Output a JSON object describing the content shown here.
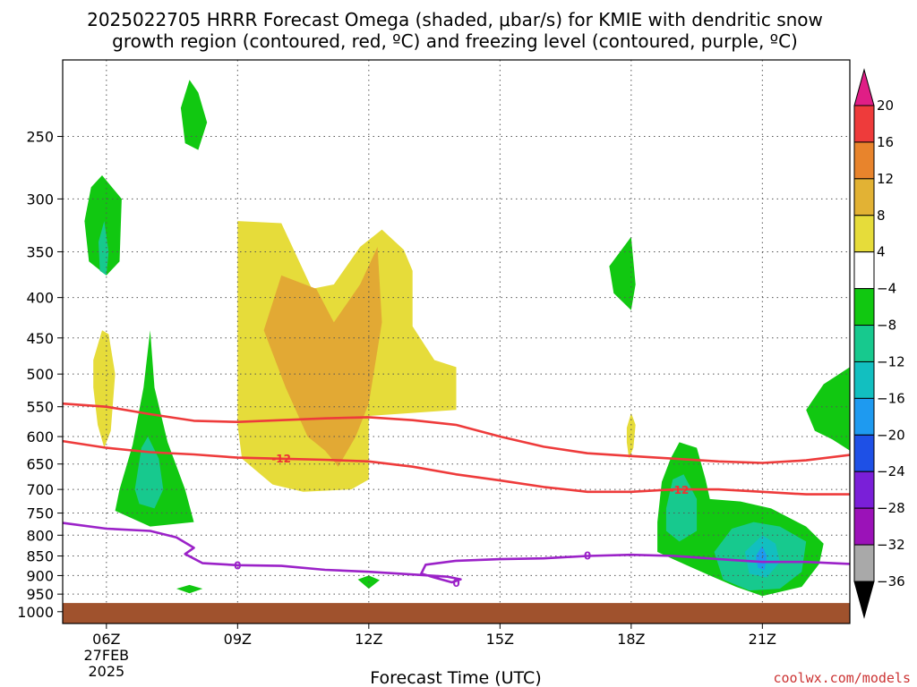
{
  "title_line1": "2025022705 HRRR Forecast Omega (shaded, μbar/s) for KMIE with dendritic snow",
  "title_line2": "growth region (contoured, red, ºC) and freezing level (contoured, purple, ºC)",
  "credit": "coolwx.com/models",
  "chart_data": {
    "type": "heatmap",
    "title": "2025022705 HRRR Forecast Omega (shaded, μbar/s) for KMIE with dendritic snow growth region (contoured, red, ºC) and freezing level (contoured, purple, ºC)",
    "xlabel": "Forecast Time (UTC)",
    "ylabel": "",
    "x_range_hours": [
      5,
      23
    ],
    "y_range_hPa": [
      200,
      1035
    ],
    "grid": true,
    "x_ticks": [
      {
        "hour": 6,
        "label": "06Z",
        "sub1": "27FEB",
        "sub2": "2025"
      },
      {
        "hour": 9,
        "label": "09Z"
      },
      {
        "hour": 12,
        "label": "12Z"
      },
      {
        "hour": 15,
        "label": "15Z"
      },
      {
        "hour": 18,
        "label": "18Z"
      },
      {
        "hour": 21,
        "label": "21Z"
      }
    ],
    "y_ticks": [
      "250",
      "300",
      "350",
      "400",
      "450",
      "500",
      "550",
      "600",
      "650",
      "700",
      "750",
      "800",
      "850",
      "900",
      "950",
      "1000"
    ],
    "colorbar": {
      "placement": "right",
      "labels": [
        "20",
        "16",
        "12",
        "8",
        "4",
        "−4",
        "−8",
        "−12",
        "−16",
        "−20",
        "−24",
        "−28",
        "−32",
        "−36"
      ],
      "colors": [
        "#e01e86",
        "#ee3b3b",
        "#e8842c",
        "#e2b234",
        "#e6dc3a",
        "#ffffff",
        "#11c811",
        "#17c98e",
        "#12bfc0",
        "#1e9af0",
        "#1e50e6",
        "#7a1fd8",
        "#9b12b8",
        "#a9a9a9",
        "#000000"
      ]
    },
    "shaded_regions": [
      {
        "name": "yellow-upper",
        "level": "4 to 8",
        "color": "#e6dc3a",
        "points": [
          [
            9.0,
            320
          ],
          [
            10.0,
            322
          ],
          [
            10.7,
            390
          ],
          [
            11.2,
            385
          ],
          [
            11.8,
            345
          ],
          [
            12.3,
            328
          ],
          [
            12.8,
            348
          ],
          [
            13.0,
            370
          ],
          [
            13.0,
            435
          ],
          [
            13.5,
            480
          ],
          [
            14.0,
            490
          ],
          [
            14.0,
            555
          ],
          [
            13.0,
            560
          ],
          [
            12.0,
            565
          ],
          [
            12.0,
            680
          ],
          [
            11.6,
            700
          ],
          [
            10.5,
            705
          ],
          [
            9.8,
            690
          ],
          [
            9.1,
            640
          ],
          [
            9.0,
            580
          ]
        ]
      },
      {
        "name": "yellow-left",
        "level": "4 to 8",
        "color": "#e6dc3a",
        "points": [
          [
            5.7,
            480
          ],
          [
            5.9,
            440
          ],
          [
            6.05,
            445
          ],
          [
            6.2,
            500
          ],
          [
            6.1,
            590
          ],
          [
            5.95,
            620
          ],
          [
            5.8,
            580
          ],
          [
            5.7,
            520
          ]
        ]
      },
      {
        "name": "yellow-18z",
        "level": "4 to 8",
        "color": "#e6dc3a",
        "points": [
          [
            17.9,
            585
          ],
          [
            18.0,
            560
          ],
          [
            18.1,
            580
          ],
          [
            18.05,
            620
          ],
          [
            17.95,
            640
          ],
          [
            17.9,
            610
          ]
        ]
      },
      {
        "name": "orange-core",
        "level": "8 to 12",
        "color": "#e2a934",
        "points": [
          [
            10.0,
            375
          ],
          [
            10.8,
            390
          ],
          [
            11.2,
            430
          ],
          [
            11.8,
            385
          ],
          [
            12.2,
            345
          ],
          [
            12.3,
            430
          ],
          [
            12.0,
            545
          ],
          [
            11.7,
            600
          ],
          [
            11.3,
            655
          ],
          [
            11.0,
            625
          ],
          [
            10.6,
            600
          ],
          [
            10.1,
            520
          ],
          [
            9.6,
            440
          ]
        ]
      },
      {
        "name": "green-0606",
        "level": "-8 to -4",
        "color": "#11c811",
        "points": [
          [
            5.5,
            320
          ],
          [
            5.65,
            290
          ],
          [
            5.9,
            280
          ],
          [
            6.35,
            300
          ],
          [
            6.3,
            360
          ],
          [
            6.0,
            375
          ],
          [
            5.6,
            360
          ]
        ]
      },
      {
        "name": "teal-0606",
        "level": "-12 to -8",
        "color": "#17c98e",
        "points": [
          [
            5.82,
            340
          ],
          [
            5.95,
            320
          ],
          [
            6.05,
            350
          ],
          [
            6.0,
            375
          ],
          [
            5.85,
            370
          ]
        ]
      },
      {
        "name": "green-top",
        "level": "-8 to -4",
        "color": "#11c811",
        "points": [
          [
            7.7,
            230
          ],
          [
            7.9,
            212
          ],
          [
            8.1,
            220
          ],
          [
            8.3,
            240
          ],
          [
            8.1,
            260
          ],
          [
            7.8,
            255
          ]
        ]
      },
      {
        "name": "green-0700",
        "level": "-8 to -4",
        "color": "#11c811",
        "points": [
          [
            7.0,
            440
          ],
          [
            7.1,
            520
          ],
          [
            7.4,
            610
          ],
          [
            7.8,
            700
          ],
          [
            8.0,
            770
          ],
          [
            7.0,
            780
          ],
          [
            6.2,
            745
          ],
          [
            6.3,
            700
          ],
          [
            6.6,
            615
          ],
          [
            6.85,
            520
          ]
        ]
      },
      {
        "name": "teal-0700",
        "level": "-12 to -8",
        "color": "#17c98e",
        "points": [
          [
            6.8,
            620
          ],
          [
            6.95,
            600
          ],
          [
            7.2,
            640
          ],
          [
            7.3,
            700
          ],
          [
            7.1,
            740
          ],
          [
            6.75,
            730
          ],
          [
            6.65,
            700
          ]
        ]
      },
      {
        "name": "green-blob-lower",
        "level": "-8 to -4",
        "color": "#11c811",
        "points": [
          [
            7.6,
            935
          ],
          [
            7.9,
            925
          ],
          [
            8.2,
            935
          ],
          [
            7.9,
            948
          ]
        ]
      },
      {
        "name": "green-blob-12z",
        "level": "-8 to -4",
        "color": "#11c811",
        "points": [
          [
            11.75,
            910
          ],
          [
            12.0,
            900
          ],
          [
            12.25,
            912
          ],
          [
            12.0,
            935
          ]
        ]
      },
      {
        "name": "green-1800",
        "level": "-8 to -4",
        "color": "#11c811",
        "points": [
          [
            17.5,
            365
          ],
          [
            18.0,
            335
          ],
          [
            18.1,
            385
          ],
          [
            18.0,
            415
          ],
          [
            17.6,
            395
          ]
        ]
      },
      {
        "name": "green-1900-21z",
        "level": "-8 to -4",
        "color": "#11c811",
        "points": [
          [
            18.7,
            685
          ],
          [
            18.9,
            640
          ],
          [
            19.1,
            610
          ],
          [
            19.5,
            620
          ],
          [
            19.7,
            680
          ],
          [
            19.8,
            720
          ],
          [
            20.5,
            725
          ],
          [
            21.2,
            740
          ],
          [
            22.0,
            780
          ],
          [
            22.4,
            820
          ],
          [
            22.3,
            870
          ],
          [
            21.9,
            930
          ],
          [
            21.0,
            955
          ],
          [
            20.4,
            930
          ],
          [
            19.8,
            900
          ],
          [
            19.0,
            860
          ],
          [
            18.6,
            840
          ],
          [
            18.6,
            770
          ]
        ]
      },
      {
        "name": "teal-1900",
        "level": "-12 to -8",
        "color": "#17c98e",
        "points": [
          [
            18.8,
            740
          ],
          [
            18.95,
            680
          ],
          [
            19.2,
            670
          ],
          [
            19.5,
            720
          ],
          [
            19.5,
            790
          ],
          [
            19.1,
            815
          ],
          [
            18.8,
            790
          ]
        ]
      },
      {
        "name": "teal-21z",
        "level": "-12 to -8",
        "color": "#17c98e",
        "points": [
          [
            19.9,
            840
          ],
          [
            20.3,
            785
          ],
          [
            20.8,
            770
          ],
          [
            21.4,
            780
          ],
          [
            22.0,
            815
          ],
          [
            21.9,
            890
          ],
          [
            21.4,
            935
          ],
          [
            20.7,
            940
          ],
          [
            20.1,
            910
          ]
        ]
      },
      {
        "name": "cyan-21z",
        "level": "-16 to -12",
        "color": "#12bfc0",
        "points": [
          [
            20.6,
            840
          ],
          [
            21.0,
            800
          ],
          [
            21.3,
            820
          ],
          [
            21.4,
            865
          ],
          [
            21.1,
            905
          ],
          [
            20.7,
            895
          ]
        ]
      },
      {
        "name": "blue-21z",
        "level": "-20 to -16",
        "color": "#1e9af0",
        "points": [
          [
            20.85,
            850
          ],
          [
            21.0,
            825
          ],
          [
            21.1,
            850
          ],
          [
            21.05,
            885
          ],
          [
            20.9,
            880
          ]
        ]
      },
      {
        "name": "green-right",
        "level": "-8 to -4",
        "color": "#11c811",
        "points": [
          [
            22.0,
            555
          ],
          [
            22.4,
            515
          ],
          [
            23.0,
            490
          ],
          [
            23.0,
            625
          ],
          [
            22.6,
            605
          ],
          [
            22.2,
            590
          ]
        ]
      }
    ],
    "contours": [
      {
        "name": "dgz-upper",
        "level": "",
        "color": "#ee3b3b",
        "points": [
          [
            5,
            545
          ],
          [
            6,
            550
          ],
          [
            7,
            562
          ],
          [
            8,
            573
          ],
          [
            9,
            575
          ],
          [
            10,
            572
          ],
          [
            11,
            569
          ],
          [
            12,
            567
          ],
          [
            13,
            572
          ],
          [
            14,
            580
          ],
          [
            15,
            600
          ],
          [
            16,
            618
          ],
          [
            17,
            630
          ],
          [
            18,
            635
          ],
          [
            19,
            640
          ],
          [
            20,
            645
          ],
          [
            21,
            648
          ],
          [
            22,
            643
          ],
          [
            23,
            633
          ]
        ]
      },
      {
        "name": "dgz-lower",
        "level": "-12",
        "color": "#ee3b3b",
        "label_at": [
          10.0,
          640
        ],
        "points": [
          [
            5,
            608
          ],
          [
            6,
            620
          ],
          [
            7,
            628
          ],
          [
            8,
            632
          ],
          [
            9,
            638
          ],
          [
            10,
            640
          ],
          [
            11,
            642
          ],
          [
            12,
            645
          ],
          [
            13,
            655
          ],
          [
            14,
            670
          ],
          [
            15,
            682
          ],
          [
            16,
            695
          ],
          [
            17,
            705
          ],
          [
            18,
            705
          ],
          [
            19,
            700
          ],
          [
            20,
            700
          ],
          [
            21,
            705
          ],
          [
            22,
            710
          ],
          [
            23,
            710
          ]
        ]
      },
      {
        "name": "dgz-lower-label2",
        "level": "-12",
        "color": "#ee3b3b",
        "label_at": [
          19.1,
          702
        ],
        "points": []
      },
      {
        "name": "freezing-level",
        "level": "0",
        "color": "#9b22c8",
        "label_at": [
          9.0,
          875
        ],
        "points": [
          [
            5,
            772
          ],
          [
            6,
            785
          ],
          [
            7,
            790
          ],
          [
            7.6,
            805
          ],
          [
            8.0,
            830
          ],
          [
            7.8,
            845
          ],
          [
            8.2,
            868
          ],
          [
            9,
            873
          ],
          [
            10,
            875
          ],
          [
            11,
            885
          ],
          [
            12,
            890
          ],
          [
            13,
            897
          ],
          [
            13.8,
            903
          ],
          [
            14.1,
            910
          ],
          [
            13.9,
            918
          ],
          [
            13.5,
            905
          ],
          [
            13.2,
            895
          ],
          [
            13.3,
            872
          ],
          [
            14,
            862
          ],
          [
            15,
            858
          ],
          [
            16,
            856
          ],
          [
            17,
            850
          ],
          [
            18,
            847
          ],
          [
            19,
            850
          ],
          [
            20,
            858
          ],
          [
            21,
            865
          ],
          [
            22,
            865
          ],
          [
            23,
            870
          ]
        ]
      },
      {
        "name": "freezing-level-label2",
        "level": "0",
        "color": "#9b22c8",
        "label_at": [
          17.0,
          850
        ],
        "points": []
      },
      {
        "name": "freezing-level-label3",
        "level": "0",
        "color": "#9b22c8",
        "label_at": [
          14.0,
          920
        ],
        "points": []
      }
    ],
    "ground": {
      "color": "#a0522d",
      "top_hPa": 975
    }
  }
}
